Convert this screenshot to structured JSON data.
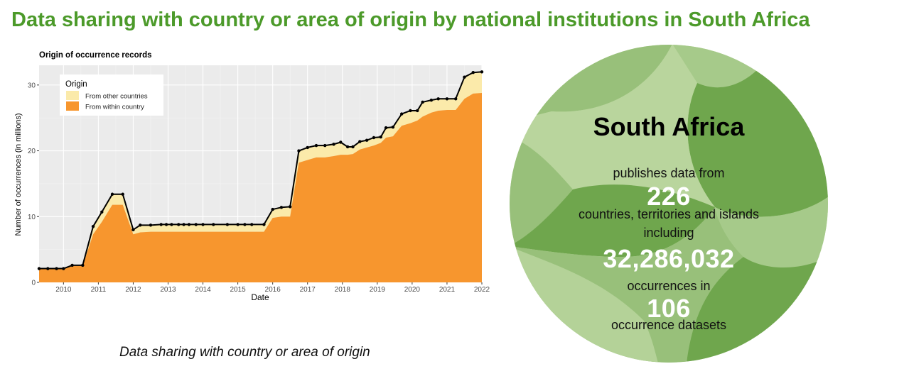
{
  "page": {
    "title": "Data sharing with country or area of origin by national institutions in South Africa",
    "caption": "Data sharing with country or area of origin"
  },
  "colors": {
    "title_green": "#4c9a2a",
    "within_country": "#f7962e",
    "other_countries": "#fbeaaa",
    "panel_bg": "#ebebeb",
    "circle_light": "#b9d59d",
    "circle_mid": "#98c07a",
    "circle_dark": "#6fa64d"
  },
  "chart_data": {
    "type": "area",
    "title": "Origin of occurrence records",
    "xlabel": "Date",
    "ylabel": "Number of occurrences (in millions)",
    "x_ticks": [
      "2010",
      "2011",
      "2012",
      "2013",
      "2014",
      "2015",
      "2016",
      "2017",
      "2018",
      "2019",
      "2020",
      "2021",
      "2022"
    ],
    "y_ticks": [
      "0",
      "10",
      "20",
      "30"
    ],
    "xlim": [
      2009.3,
      2022.0
    ],
    "ylim": [
      0,
      33
    ],
    "grid": true,
    "legend": {
      "title": "Origin",
      "position": "top-left"
    },
    "x": [
      2009.3,
      2009.55,
      2009.8,
      2010.0,
      2010.25,
      2010.55,
      2010.85,
      2011.1,
      2011.4,
      2011.7,
      2012.0,
      2012.2,
      2012.5,
      2012.8,
      2012.95,
      2013.1,
      2013.3,
      2013.45,
      2013.6,
      2013.8,
      2014.0,
      2014.3,
      2014.7,
      2015.0,
      2015.2,
      2015.4,
      2015.75,
      2016.0,
      2016.25,
      2016.5,
      2016.75,
      2017.0,
      2017.25,
      2017.5,
      2017.75,
      2017.95,
      2018.15,
      2018.3,
      2018.5,
      2018.7,
      2018.9,
      2019.1,
      2019.25,
      2019.45,
      2019.7,
      2019.95,
      2020.15,
      2020.3,
      2020.55,
      2020.75,
      2021.0,
      2021.25,
      2021.5,
      2021.75,
      2022.0
    ],
    "series": [
      {
        "name": "From within country",
        "values": [
          2.1,
          2.1,
          2.1,
          2.1,
          2.5,
          2.5,
          7.3,
          9.2,
          11.8,
          11.8,
          7.3,
          7.6,
          7.7,
          7.7,
          7.7,
          7.7,
          7.7,
          7.7,
          7.7,
          7.7,
          7.7,
          7.7,
          7.7,
          7.7,
          7.7,
          7.7,
          7.7,
          9.8,
          10.0,
          10.0,
          18.2,
          18.6,
          19.0,
          19.0,
          19.2,
          19.4,
          19.4,
          19.5,
          20.2,
          20.5,
          20.8,
          21.2,
          22.0,
          22.2,
          23.8,
          24.2,
          24.6,
          25.2,
          25.8,
          26.1,
          26.2,
          26.2,
          27.9,
          28.7,
          28.8
        ]
      },
      {
        "name": "From other countries",
        "values": [
          0.0,
          0.0,
          0.0,
          0.0,
          0.1,
          0.1,
          1.2,
          1.5,
          1.6,
          1.6,
          0.7,
          1.1,
          1.0,
          1.1,
          1.1,
          1.1,
          1.1,
          1.1,
          1.1,
          1.1,
          1.1,
          1.1,
          1.1,
          1.1,
          1.1,
          1.1,
          1.1,
          1.3,
          1.4,
          1.5,
          1.8,
          1.9,
          1.8,
          1.8,
          1.8,
          1.9,
          1.2,
          1.1,
          1.2,
          1.1,
          1.2,
          0.9,
          1.5,
          1.4,
          1.8,
          1.9,
          1.5,
          2.2,
          1.9,
          1.8,
          1.7,
          1.7,
          3.3,
          3.2,
          3.2
        ]
      }
    ],
    "total_line": [
      2.1,
      2.1,
      2.1,
      2.1,
      2.6,
      2.6,
      8.5,
      10.7,
      13.4,
      13.4,
      8.0,
      8.7,
      8.7,
      8.8,
      8.8,
      8.8,
      8.8,
      8.8,
      8.8,
      8.8,
      8.8,
      8.8,
      8.8,
      8.8,
      8.8,
      8.8,
      8.8,
      11.1,
      11.4,
      11.5,
      20.0,
      20.5,
      20.8,
      20.8,
      21.0,
      21.3,
      20.6,
      20.6,
      21.4,
      21.6,
      22.0,
      22.1,
      23.5,
      23.6,
      25.6,
      26.1,
      26.1,
      27.4,
      27.7,
      27.9,
      27.9,
      27.9,
      31.2,
      31.9,
      32.0
    ]
  },
  "summary": {
    "country": "South Africa",
    "line1": "publishes data from",
    "countries_count": "226",
    "line2": "countries, territories and islands",
    "line3": "including",
    "occurrences": "32,286,032",
    "line4": "occurrences in",
    "datasets": "106",
    "line5": "occurrence datasets"
  }
}
